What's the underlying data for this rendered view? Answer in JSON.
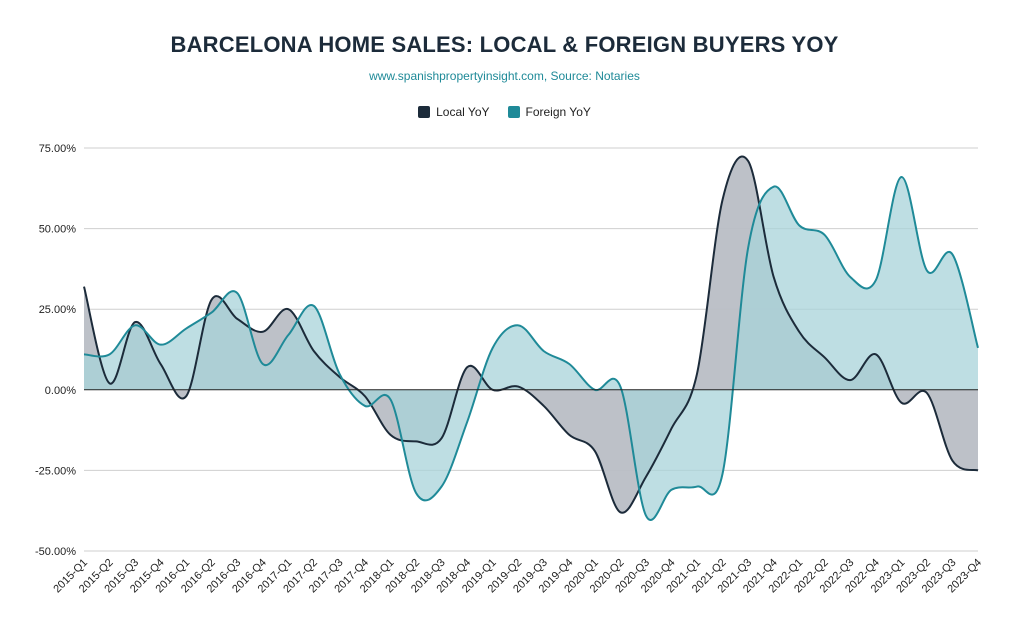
{
  "chart_data": {
    "type": "area",
    "title": "BARCELONA HOME SALES: LOCAL & FOREIGN BUYERS YOY",
    "subtitle": "www.spanishpropertyinsight.com, Source: Notaries",
    "xlabel": "",
    "ylabel": "",
    "ylim": [
      -50,
      75
    ],
    "yticks": [
      75,
      50,
      25,
      0,
      -25,
      -50
    ],
    "ytick_labels": [
      "75.00%",
      "50.00%",
      "25.00%",
      "0.00%",
      "-25.00%",
      "-50.00%"
    ],
    "categories": [
      "2015-Q1",
      "2015-Q2",
      "2015-Q3",
      "2015-Q4",
      "2016-Q1",
      "2016-Q2",
      "2016-Q3",
      "2016-Q4",
      "2017-Q1",
      "2017-Q2",
      "2017-Q3",
      "2017-Q4",
      "2018-Q1",
      "2018-Q2",
      "2018-Q3",
      "2018-Q4",
      "2019-Q1",
      "2019-Q2",
      "2019-Q3",
      "2019-Q4",
      "2020-Q1",
      "2020-Q2",
      "2020-Q3",
      "2020-Q4",
      "2021-Q1",
      "2021-Q2",
      "2021-Q3",
      "2021-Q4",
      "2022-Q1",
      "2022-Q2",
      "2022-Q3",
      "2022-Q4",
      "2023-Q1",
      "2023-Q2",
      "2023-Q3",
      "2023-Q4"
    ],
    "series": [
      {
        "name": "Local YoY",
        "color": "#1c2b3a",
        "fill": "#b9bec5",
        "values": [
          32,
          2,
          21,
          8,
          -2,
          28,
          22,
          18,
          25,
          12,
          4,
          -2,
          -14,
          -16,
          -15,
          7,
          0,
          1,
          -5,
          -14,
          -19,
          -38,
          -27,
          -12,
          5,
          59,
          71,
          35,
          18,
          10,
          3,
          11,
          -4,
          -1,
          -22,
          -25
        ]
      },
      {
        "name": "Foreign YoY",
        "color": "#1f8a98",
        "fill": "#a8d3d9",
        "values": [
          11,
          11,
          20,
          14,
          19,
          24,
          30,
          8,
          17,
          26,
          5,
          -5,
          -3,
          -32,
          -30,
          -10,
          13,
          20,
          12,
          8,
          0,
          1,
          -39,
          -31,
          -30,
          -26,
          44,
          63,
          51,
          48,
          35,
          34,
          66,
          37,
          42,
          13
        ]
      }
    ]
  }
}
